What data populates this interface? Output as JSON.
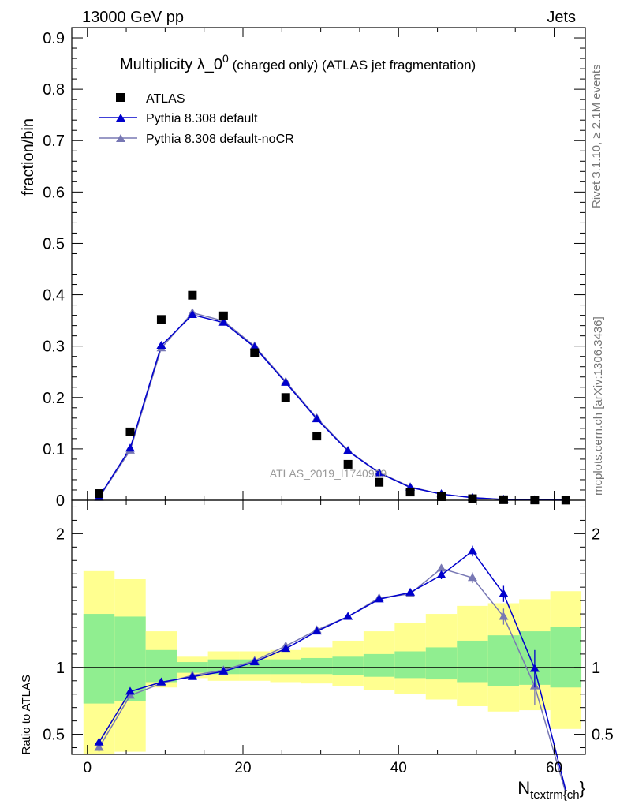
{
  "header": {
    "energy_label": "13000 GeV pp",
    "process_label": "Jets"
  },
  "side_labels": {
    "rivet": "Rivet 3.1.10, ≥ 2.1M events",
    "mcplots": "mcplots.cern.ch [arXiv:1306.3436]"
  },
  "watermark": "ATLAS_2019_I1740909",
  "colors": {
    "atlas": "#000000",
    "pythia_default": "#0000cc",
    "pythia_nocr": "#7878b4",
    "band_inner": "#90ee90",
    "band_outer": "#ffff90"
  },
  "chart_data": [
    {
      "type": "scatter",
      "title": "Multiplicity λ_0⁰ (charged only) (ATLAS jet fragmentation)",
      "title_main": "Multiplicity λ_0",
      "title_sup": "0",
      "title_rest": " (charged only) (ATLAS jet fragmentation)",
      "ylabel": "fraction/bin",
      "xlim": [
        -2,
        64
      ],
      "ylim": [
        0,
        0.92
      ],
      "y_ticks": [
        0,
        0.1,
        0.2,
        0.3,
        0.4,
        0.5,
        0.6,
        0.7,
        0.8,
        0.9
      ],
      "y_tick_labels": [
        "0",
        "0.1",
        "0.2",
        "0.3",
        "0.4",
        "0.5",
        "0.6",
        "0.7",
        "0.8",
        "0.9"
      ],
      "legend": [
        "ATLAS",
        "Pythia 8.308 default",
        "Pythia 8.308 default-noCR"
      ],
      "legend_position": "top-left",
      "x": [
        1.5,
        5.5,
        9.5,
        13.5,
        17.5,
        21.5,
        25.5,
        29.5,
        33.5,
        37.5,
        41.5,
        45.5,
        49.5,
        53.5,
        57.5,
        61.5
      ],
      "series": [
        {
          "name": "ATLAS",
          "values": [
            0.013,
            0.133,
            0.352,
            0.399,
            0.359,
            0.287,
            0.2,
            0.125,
            0.07,
            0.035,
            0.016,
            0.007,
            0.003,
            0.001,
            0.0005,
            0.0002
          ]
        },
        {
          "name": "Pythia 8.308 default",
          "values": [
            0.006,
            0.101,
            0.301,
            0.361,
            0.346,
            0.298,
            0.229,
            0.158,
            0.096,
            0.053,
            0.025,
            0.012,
            0.005,
            0.0015,
            0.0005,
            0.0001
          ]
        },
        {
          "name": "Pythia 8.308 default-noCR",
          "values": [
            0.005,
            0.097,
            0.296,
            0.365,
            0.349,
            0.3,
            0.231,
            0.16,
            0.097,
            0.054,
            0.026,
            0.012,
            0.005,
            0.0015,
            0.0004,
            0.0001
          ]
        }
      ]
    },
    {
      "type": "line",
      "ylabel": "Ratio to ATLAS",
      "xlabel_main": "N",
      "xlabel_sub": "textrm{ch",
      "xlabel_close": "}",
      "xlim": [
        -2,
        64
      ],
      "ylim": [
        0.35,
        2.25
      ],
      "x_ticks": [
        0,
        20,
        40,
        60
      ],
      "x_tick_labels": [
        "0",
        "20",
        "40",
        "60"
      ],
      "y_ticks": [
        0.5,
        1,
        2
      ],
      "y_tick_labels": [
        "0.5",
        "1",
        "2"
      ],
      "reference": 1,
      "bin_edges": [
        -0.5,
        3.5,
        7.5,
        11.5,
        15.5,
        19.5,
        23.5,
        27.5,
        31.5,
        35.5,
        39.5,
        43.5,
        47.5,
        51.5,
        55.5,
        59.5,
        63.5
      ],
      "band_inner_low": [
        0.73,
        0.75,
        0.89,
        0.96,
        0.95,
        0.95,
        0.95,
        0.95,
        0.94,
        0.93,
        0.92,
        0.91,
        0.89,
        0.86,
        0.87,
        0.85
      ],
      "band_inner_high": [
        1.4,
        1.38,
        1.13,
        1.04,
        1.06,
        1.06,
        1.06,
        1.07,
        1.08,
        1.1,
        1.12,
        1.15,
        1.2,
        1.24,
        1.27,
        1.3
      ],
      "band_outer_low": [
        0.35,
        0.37,
        0.85,
        0.92,
        0.9,
        0.9,
        0.89,
        0.88,
        0.86,
        0.83,
        0.8,
        0.76,
        0.71,
        0.67,
        0.68,
        0.54
      ],
      "band_outer_high": [
        1.72,
        1.66,
        1.27,
        1.08,
        1.12,
        1.12,
        1.13,
        1.15,
        1.2,
        1.27,
        1.33,
        1.4,
        1.46,
        1.48,
        1.51,
        1.57
      ],
      "x": [
        1.5,
        5.5,
        9.5,
        13.5,
        17.5,
        21.5,
        25.5,
        29.5,
        33.5,
        37.5,
        41.5,
        45.5,
        49.5,
        53.5,
        57.5,
        61.5
      ],
      "series": [
        {
          "name": "Pythia 8.308 default",
          "values": [
            0.44,
            0.82,
            0.89,
            0.93,
            0.97,
            1.04,
            1.14,
            1.27,
            1.38,
            1.51,
            1.56,
            1.69,
            1.87,
            1.55,
            0.99,
            0.08
          ],
          "errors": [
            0.03,
            0.01,
            0.01,
            0.01,
            0.01,
            0.01,
            0.01,
            0.01,
            0.01,
            0.02,
            0.02,
            0.03,
            0.04,
            0.06,
            0.14,
            0.0
          ]
        },
        {
          "name": "Pythia 8.308 default-noCR",
          "values": [
            0.4,
            0.79,
            0.88,
            0.94,
            0.98,
            1.05,
            1.16,
            1.28,
            1.38,
            1.52,
            1.55,
            1.74,
            1.67,
            1.38,
            0.86,
            0.06
          ],
          "errors": [
            0.03,
            0.01,
            0.01,
            0.01,
            0.01,
            0.01,
            0.01,
            0.01,
            0.01,
            0.02,
            0.02,
            0.03,
            0.04,
            0.06,
            0.14,
            0.0
          ]
        }
      ]
    }
  ]
}
